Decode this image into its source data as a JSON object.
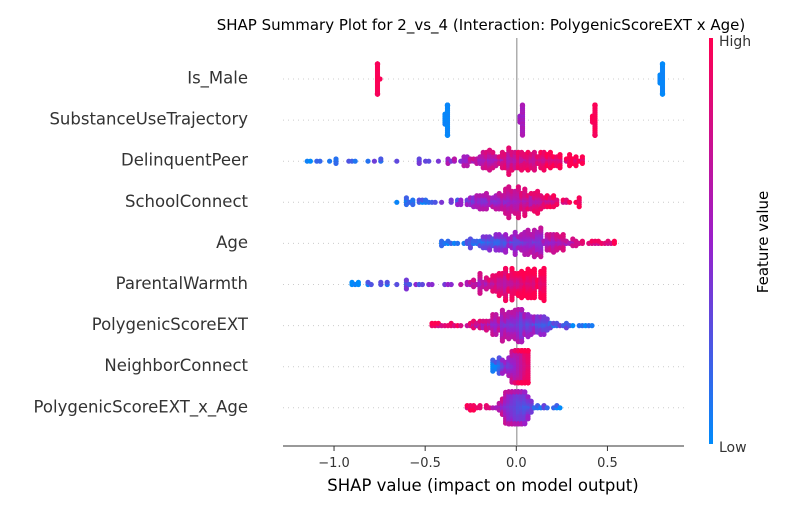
{
  "chart_data": {
    "type": "scatter",
    "subtype": "shap-beeswarm",
    "title": "SHAP Summary Plot for 2_vs_4 (Interaction: PolygenicScoreEXT x Age)",
    "xlabel": "SHAP value (impact on model output)",
    "xlim": [
      -1.28,
      0.92
    ],
    "xticks": [
      -1.0,
      -0.5,
      0.0,
      0.5
    ],
    "xtick_labels": [
      "−1.0",
      "−0.5",
      "0.0",
      "0.5"
    ],
    "colorbar": {
      "title": "Feature value",
      "high_label": "High",
      "low_label": "Low",
      "low_color": "#008bfb",
      "high_color": "#ff0051"
    },
    "features": [
      {
        "name": "Is_Male",
        "clusters": [
          {
            "x": -0.76,
            "spread": 0.012,
            "count": 34,
            "vmin": 0.95,
            "vmax": 1.0
          },
          {
            "x": 0.8,
            "spread": 0.012,
            "count": 34,
            "vmin": 0.0,
            "vmax": 0.05
          }
        ]
      },
      {
        "name": "SubstanceUseTrajectory",
        "clusters": [
          {
            "x": -0.38,
            "spread": 0.012,
            "count": 34,
            "vmin": 0.0,
            "vmax": 0.05
          },
          {
            "x": 0.03,
            "spread": 0.012,
            "count": 22,
            "vmin": 0.5,
            "vmax": 0.6
          },
          {
            "x": 0.43,
            "spread": 0.014,
            "count": 36,
            "vmin": 0.95,
            "vmax": 1.0
          }
        ]
      },
      {
        "name": "DelinquentPeer",
        "range": [
          -1.15,
          0.37
        ],
        "peak": 0.0,
        "width": 0.16,
        "color_trend": "increasing"
      },
      {
        "name": "SchoolConnect",
        "range": [
          -0.68,
          0.35
        ],
        "peak": 0.0,
        "width": 0.14,
        "color_trend": "increasing"
      },
      {
        "name": "Age",
        "range": [
          -0.42,
          0.6
        ],
        "peak": 0.05,
        "width": 0.16,
        "color_trend": "increasing"
      },
      {
        "name": "ParentalWarmth",
        "range": [
          -0.92,
          0.16
        ],
        "peak": 0.0,
        "width": 0.12,
        "color_trend": "increasing"
      },
      {
        "name": "PolygenicScoreEXT",
        "range": [
          -0.48,
          0.45
        ],
        "peak": 0.0,
        "width": 0.1,
        "color_trend": "decreasing"
      },
      {
        "name": "NeighborConnect",
        "range": [
          -0.14,
          0.06
        ],
        "peak": 0.03,
        "width": 0.03,
        "color_trend": "increasing"
      },
      {
        "name": "PolygenicScoreEXT_x_Age",
        "range": [
          -0.28,
          0.25
        ],
        "peak": 0.0,
        "width": 0.04,
        "color_trend": "decreasing"
      }
    ]
  }
}
